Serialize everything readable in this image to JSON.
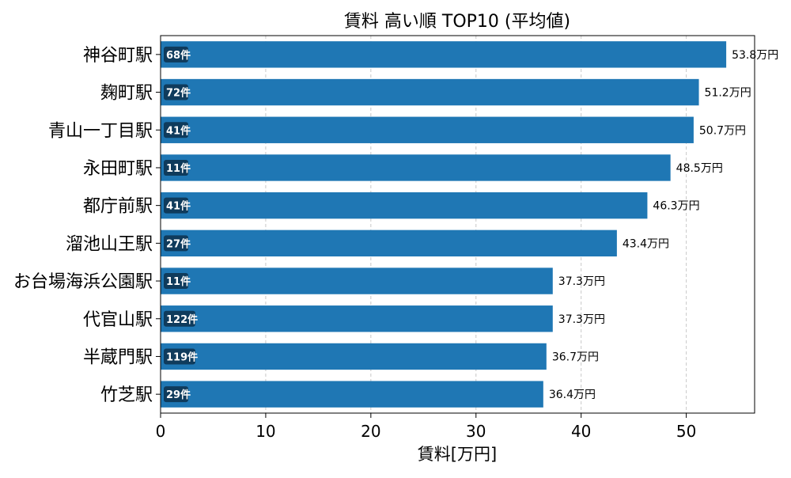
{
  "chart_data": {
    "type": "bar",
    "orientation": "horizontal",
    "title": "賃料 高い順 TOP10 (平均値)",
    "xlabel": "賃料[万円]",
    "ylabel": "",
    "xlim": [
      0,
      56.5
    ],
    "xticks": [
      "0",
      "10",
      "20",
      "30",
      "40",
      "50"
    ],
    "grid": "x-dashed",
    "categories": [
      "神谷町駅",
      "麹町駅",
      "青山一丁目駅",
      "永田町駅",
      "都庁前駅",
      "溜池山王駅",
      "お台場海浜公園駅",
      "代官山駅",
      "半蔵門駅",
      "竹芝駅"
    ],
    "values": [
      53.8,
      51.2,
      50.7,
      48.5,
      46.3,
      43.4,
      37.3,
      37.3,
      36.7,
      36.4
    ],
    "value_labels": [
      "53.8万円",
      "51.2万円",
      "50.7万円",
      "48.5万円",
      "46.3万円",
      "43.4万円",
      "37.3万円",
      "37.3万円",
      "36.7万円",
      "36.4万円"
    ],
    "count_labels": [
      "68件",
      "72件",
      "41件",
      "11件",
      "41件",
      "27件",
      "11件",
      "122件",
      "119件",
      "29件"
    ],
    "bar_color": "#1f77b4",
    "badge_color": "#0f3b5c"
  }
}
